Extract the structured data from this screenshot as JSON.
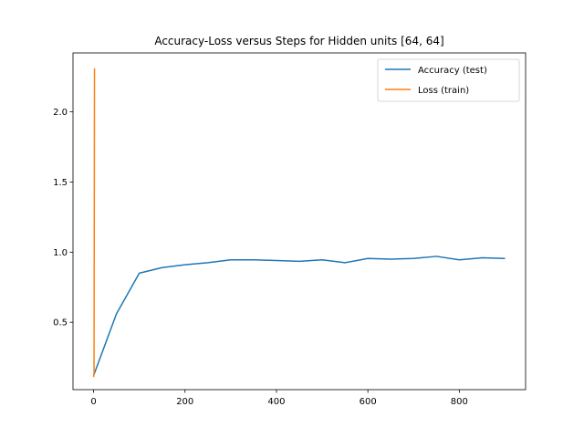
{
  "chart_data": {
    "type": "line",
    "title": "Accuracy-Loss versus Steps for Hidden units [64, 64]",
    "xlabel": "",
    "ylabel": "",
    "xlim": [
      -45,
      945
    ],
    "ylim": [
      0.02,
      2.42
    ],
    "x_ticks": [
      0,
      200,
      400,
      600,
      800
    ],
    "y_ticks": [
      0.5,
      1.0,
      1.5,
      2.0
    ],
    "x_tick_labels": [
      "0",
      "200",
      "400",
      "600",
      "800"
    ],
    "y_tick_labels": [
      "0.5",
      "1.0",
      "1.5",
      "2.0"
    ],
    "grid": false,
    "legend_position": "upper right",
    "series": [
      {
        "name": "Accuracy (test)",
        "color": "#1f77b4",
        "x": [
          0,
          50,
          100,
          150,
          200,
          250,
          300,
          350,
          400,
          450,
          500,
          550,
          600,
          650,
          700,
          750,
          800,
          850,
          900
        ],
        "y": [
          0.12,
          0.56,
          0.85,
          0.89,
          0.91,
          0.925,
          0.945,
          0.945,
          0.94,
          0.935,
          0.945,
          0.925,
          0.955,
          0.95,
          0.955,
          0.97,
          0.945,
          0.96,
          0.955
        ]
      },
      {
        "name": "Loss (train)",
        "color": "#ff7f0e",
        "x": [
          0,
          1,
          2
        ],
        "y": [
          0.11,
          0.14,
          2.31
        ]
      }
    ]
  }
}
